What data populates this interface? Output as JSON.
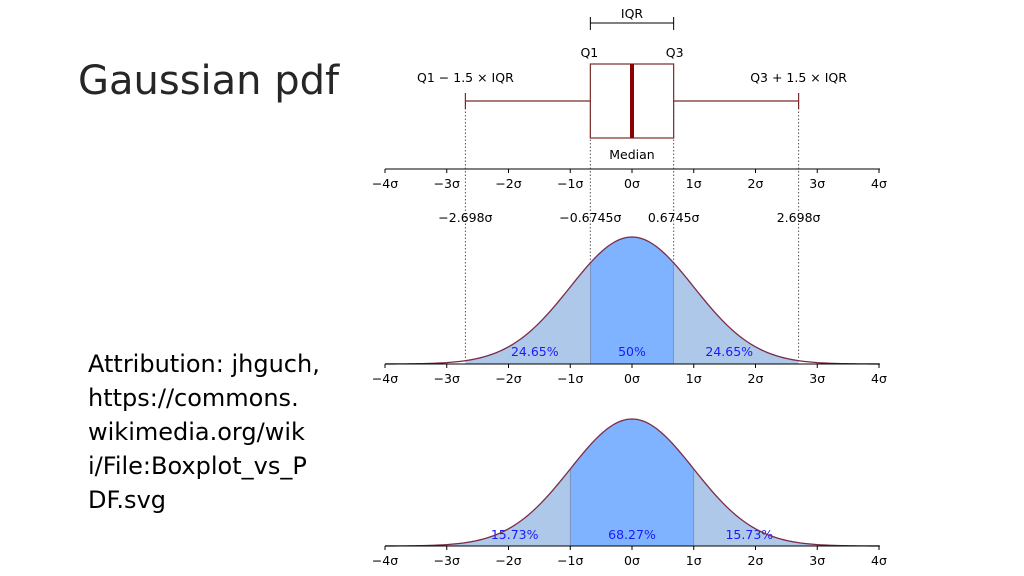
{
  "slide": {
    "title": "Gaussian pdf",
    "attribution_lines": [
      "Attribution: jhguch,",
      "https://commons.",
      "wikimedia.org/wik",
      "i/File:Boxplot_vs_P",
      "DF.svg"
    ]
  },
  "chart_data": {
    "type": "diagram",
    "colors": {
      "box": "#7a2b2b",
      "median": "#8b0000",
      "curve": "#7a2b4a",
      "fill_light": "#adc8e8",
      "fill_dark": "#80b3ff",
      "pct_text": "#1a1aff"
    },
    "axis": {
      "xlim": [
        -4,
        4
      ],
      "ticks": [
        -4,
        -3,
        -2,
        -1,
        0,
        1,
        2,
        3,
        4
      ],
      "tick_labels": [
        "−4σ",
        "−3σ",
        "−2σ",
        "−1σ",
        "0σ",
        "1σ",
        "2σ",
        "3σ",
        "4σ"
      ]
    },
    "boxplot": {
      "iqr_label": "IQR",
      "q1_label": "Q1",
      "q3_label": "Q3",
      "lower_whisker_label": "Q1 − 1.5 × IQR",
      "upper_whisker_label": "Q3 + 1.5 × IQR",
      "median_label": "Median",
      "q1": -0.6745,
      "median": 0,
      "q3": 0.6745,
      "lower_whisker": -2.698,
      "upper_whisker": 2.698
    },
    "reference_lines": [
      {
        "x": -2.698,
        "label": "−2.698σ"
      },
      {
        "x": -0.6745,
        "label": "−0.6745σ"
      },
      {
        "x": 0.6745,
        "label": "0.6745σ"
      },
      {
        "x": 2.698,
        "label": "2.698σ"
      }
    ],
    "pdf_iqr": {
      "regions": [
        {
          "from": -2.698,
          "to": -0.6745,
          "label": "24.65%",
          "shade": "light"
        },
        {
          "from": -0.6745,
          "to": 0.6745,
          "label": "50%",
          "shade": "dark"
        },
        {
          "from": 0.6745,
          "to": 2.698,
          "label": "24.65%",
          "shade": "light"
        }
      ]
    },
    "pdf_sigma": {
      "regions": [
        {
          "from": -4,
          "to": -1,
          "label": "15.73%",
          "shade": "light"
        },
        {
          "from": -1,
          "to": 1,
          "label": "68.27%",
          "shade": "dark"
        },
        {
          "from": 1,
          "to": 4,
          "label": "15.73%",
          "shade": "light"
        }
      ]
    }
  }
}
